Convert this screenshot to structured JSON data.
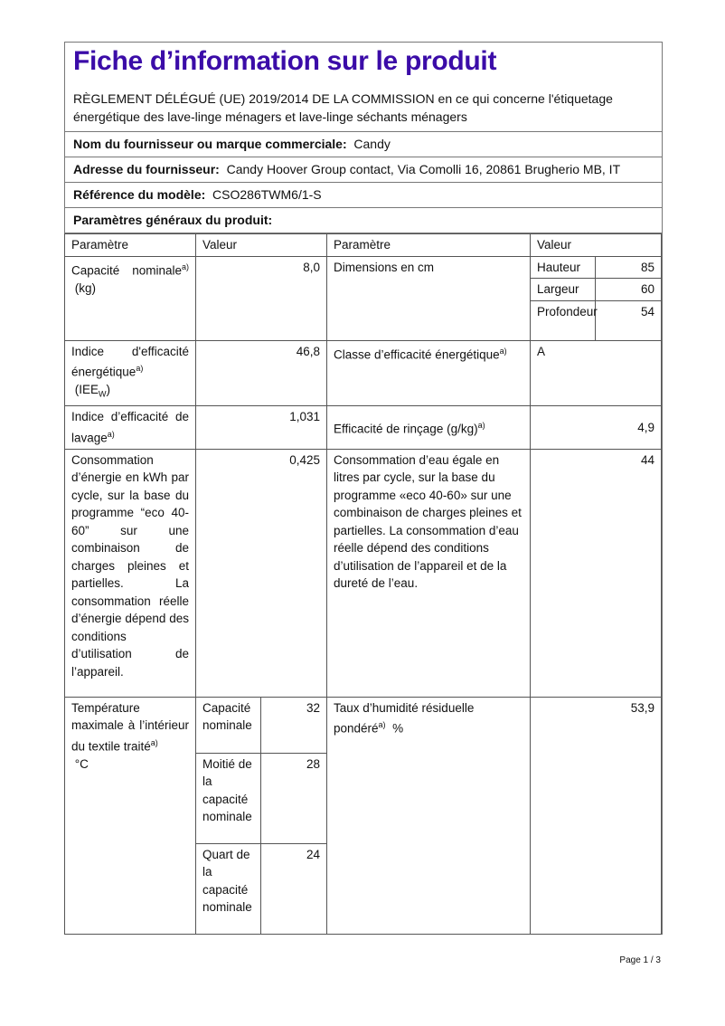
{
  "title": "Fiche d’information sur le produit",
  "regulation": "RÈGLEMENT DÉLÉGUÉ (UE) 2019/2014 DE LA COMMISSION en ce qui concerne l'étiquetage énergétique des lave-linge ménagers et lave-linge séchants ménagers",
  "supplier": {
    "label": "Nom du fournisseur ou marque commerciale:",
    "value": "Candy"
  },
  "address": {
    "label": "Adresse du fournisseur:",
    "value": "Candy Hoover Group contact, Via Comolli 16, 20861 Brugherio MB, IT"
  },
  "model": {
    "label": "Référence du modèle:",
    "value": "CSO286TWM6/1-S"
  },
  "general": "Paramètres généraux du produit:",
  "headers": {
    "param": "Paramètre",
    "value": "Valeur"
  },
  "sup": "a)",
  "rows": {
    "capacity": {
      "label": "Capacité nominale",
      "unit": "(kg)",
      "value": "8,0"
    },
    "dimensions": {
      "label": "Dimensions en cm",
      "height_label": "Hauteur",
      "height": "85",
      "width_label": "Largeur",
      "width": "60",
      "depth_label": "Profondeur",
      "depth": "54"
    },
    "eei": {
      "label": "Indice d'efficacité énergétique",
      "sub": "(IEE",
      "subw": "W",
      ")": ")",
      "value": "46,8"
    },
    "energy_class": {
      "label": "Classe d’efficacité énergétique",
      "value": "A"
    },
    "wash": {
      "label": "Indice d’efficacité de lavage",
      "value": "1,031"
    },
    "rinse": {
      "label": "Efficacité de rinçage (g/kg)",
      "value": "4,9"
    },
    "energy": {
      "label": "Consommation d’énergie en kWh par cycle, sur la base du programme “eco 40-60” sur une combinaison de charges pleines et partielles. La consommation réelle d’énergie dépend des conditions d’utilisation de l’appareil.",
      "value": "0,425"
    },
    "water": {
      "label": "Consommation d’eau égale en litres par cycle, sur la base du programme «eco 40-60» sur une combinaison de charges pleines et partielles. La consommation d’eau réelle dépend des conditions d’utilisation de l’appareil et de la dureté de l’eau.",
      "value": "44"
    },
    "temp": {
      "label": "Température maximale à l’intérieur du textile traité",
      "unit": "°C",
      "full_label": "Capacité nominale",
      "full": "32",
      "half_label": "Moitié de la capacité nominale",
      "half": "28",
      "quarter_label": "Quart de la capacité nominale",
      "quarter": "24"
    },
    "humidity": {
      "label": "Taux d’humidité résiduelle pondéré",
      "unit": "%",
      "value": "53,9"
    }
  },
  "page": "Page 1 / 3",
  "colors": {
    "title": "#3b0ca8"
  }
}
